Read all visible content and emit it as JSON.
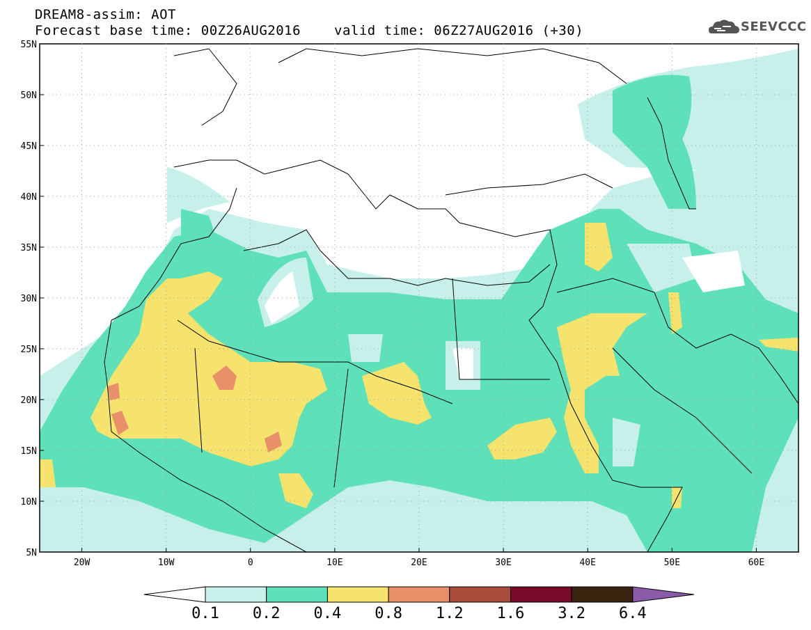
{
  "header": {
    "title": "DREAM8-assim: AOT",
    "base_time": "Forecast base time: 00Z26AUG2016",
    "valid_time": "valid time: 06Z27AUG2016 (+30)",
    "logo_text": "SEEVCCC"
  },
  "map": {
    "lat_labels": [
      "55N",
      "50N",
      "45N",
      "40N",
      "35N",
      "30N",
      "25N",
      "20N",
      "15N",
      "10N",
      "5N"
    ],
    "lon_labels": [
      "20W",
      "10W",
      "0",
      "10E",
      "20E",
      "30E",
      "40E",
      "50E",
      "60E"
    ],
    "lon_range": [
      -25,
      65
    ],
    "lat_range": [
      5,
      55
    ]
  },
  "colorbar": {
    "labels": [
      "0.1",
      "0.2",
      "0.4",
      "0.8",
      "1.2",
      "1.6",
      "3.2",
      "6.4"
    ],
    "colors": [
      "#ffffff",
      "#c8f0ea",
      "#5ee0b8",
      "#f5e36e",
      "#e8906a",
      "#a84c3c",
      "#7a0a2a",
      "#3a2410",
      "#8a5ca8"
    ]
  }
}
